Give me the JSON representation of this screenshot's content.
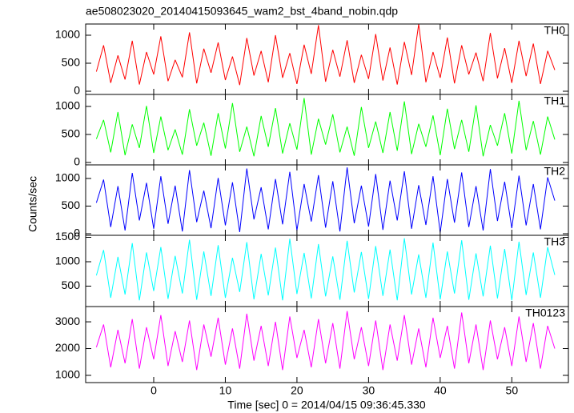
{
  "chart_data": {
    "type": "line",
    "title": "ae508023020_20140415093645_wam2_bst_4band_nobin.qdp",
    "xlabel": "Time [sec] 0 = 2014/04/15 09:36:45.330",
    "ylabel": "Counts/sec",
    "xlim": [
      -9.5,
      57.9
    ],
    "xticks": [
      0,
      10,
      20,
      30,
      40,
      50
    ],
    "x": [
      -8,
      -7,
      -6,
      -5,
      -4,
      -3,
      -2,
      -1,
      0,
      1,
      2,
      3,
      4,
      5,
      6,
      7,
      8,
      9,
      10,
      11,
      12,
      13,
      14,
      15,
      16,
      17,
      18,
      19,
      20,
      21,
      22,
      23,
      24,
      25,
      26,
      27,
      28,
      29,
      30,
      31,
      32,
      33,
      34,
      35,
      36,
      37,
      38,
      39,
      40,
      41,
      42,
      43,
      44,
      45,
      46,
      47,
      48,
      49,
      50,
      51,
      52,
      53,
      54,
      55,
      56
    ],
    "series": [
      {
        "name": "TH0",
        "color": "#ff0000",
        "ylim": [
          -57,
          1200
        ],
        "yticks": [
          0,
          500,
          1000
        ],
        "values": [
          350,
          820,
          150,
          640,
          210,
          900,
          120,
          700,
          300,
          980,
          180,
          560,
          250,
          1050,
          140,
          760,
          330,
          870,
          200,
          620,
          110,
          950,
          280,
          720,
          160,
          1000,
          240,
          680,
          130,
          830,
          310,
          1180,
          170,
          740,
          260,
          910,
          150,
          650,
          220,
          1020,
          190,
          780,
          120,
          880,
          290,
          1200,
          160,
          700,
          240,
          960,
          140,
          820,
          300,
          690,
          180,
          1040,
          230,
          770,
          150,
          900,
          270,
          850,
          130,
          720,
          380
        ]
      },
      {
        "name": "TH1",
        "color": "#00ff00",
        "ylim": [
          -43,
          1214
        ],
        "yticks": [
          0,
          500,
          1000
        ],
        "values": [
          420,
          760,
          180,
          900,
          130,
          680,
          260,
          1010,
          170,
          820,
          220,
          590,
          140,
          950,
          300,
          710,
          120,
          880,
          250,
          1060,
          190,
          640,
          110,
          830,
          280,
          970,
          160,
          700,
          230,
          1150,
          140,
          780,
          320,
          860,
          180,
          640,
          120,
          990,
          260,
          730,
          170,
          900,
          210,
          1090,
          150,
          690,
          280,
          840,
          130,
          960,
          240,
          760,
          190,
          1020,
          110,
          670,
          300,
          880,
          160,
          1100,
          220,
          740,
          140,
          820,
          410
        ]
      },
      {
        "name": "TH2",
        "color": "#0000ff",
        "ylim": [
          -29,
          1246
        ],
        "yticks": [
          0,
          500,
          1000
        ],
        "values": [
          560,
          980,
          120,
          860,
          60,
          1100,
          240,
          920,
          90,
          1040,
          180,
          870,
          40,
          1150,
          210,
          780,
          100,
          1010,
          150,
          930,
          30,
          1180,
          260,
          840,
          80,
          990,
          170,
          1120,
          60,
          900,
          220,
          1060,
          110,
          950,
          40,
          1200,
          190,
          870,
          130,
          1080,
          70,
          960,
          240,
          1130,
          90,
          880,
          160,
          1040,
          20,
          990,
          200,
          1110,
          120,
          860,
          60,
          1170,
          230,
          940,
          100,
          1050,
          150,
          900,
          80,
          1020,
          600
        ]
      },
      {
        "name": "TH3",
        "color": "#00ffff",
        "ylim": [
          82,
          1541
        ],
        "yticks": [
          500,
          1000,
          1500
        ],
        "values": [
          720,
          1240,
          260,
          1100,
          330,
          1380,
          210,
          1190,
          400,
          1300,
          240,
          1120,
          350,
          1450,
          220,
          1210,
          300,
          1340,
          260,
          1080,
          380,
          1400,
          230,
          1160,
          310,
          1290,
          210,
          1470,
          340,
          1180,
          250,
          1360,
          290,
          1110,
          220,
          1430,
          370,
          1200,
          240,
          1320,
          300,
          1250,
          210,
          1480,
          330,
          1150,
          260,
          1390,
          230,
          1210,
          350,
          1440,
          220,
          1170,
          290,
          1330,
          250,
          1260,
          210,
          1410,
          320,
          1190,
          260,
          1300,
          730
        ]
      },
      {
        "name": "TH0123",
        "color": "#ff00ff",
        "ylim": [
          730,
          3570
        ],
        "yticks": [
          1000,
          2000,
          3000
        ],
        "values": [
          2050,
          2900,
          1300,
          2700,
          1450,
          3100,
          1250,
          2800,
          1600,
          3250,
          1350,
          2650,
          1500,
          3050,
          1200,
          2900,
          1700,
          3150,
          1400,
          2750,
          1250,
          3300,
          1550,
          2850,
          1350,
          3000,
          1200,
          3200,
          1650,
          2700,
          1300,
          3100,
          1450,
          2950,
          1250,
          3400,
          1600,
          2800,
          1350,
          3050,
          1200,
          2900,
          1550,
          3250,
          1400,
          2750,
          1300,
          3150,
          1650,
          2850,
          1250,
          3350,
          1450,
          2900,
          1200,
          3050,
          1600,
          2800,
          1350,
          3200,
          1500,
          2950,
          1250,
          2850,
          2000
        ]
      }
    ]
  }
}
